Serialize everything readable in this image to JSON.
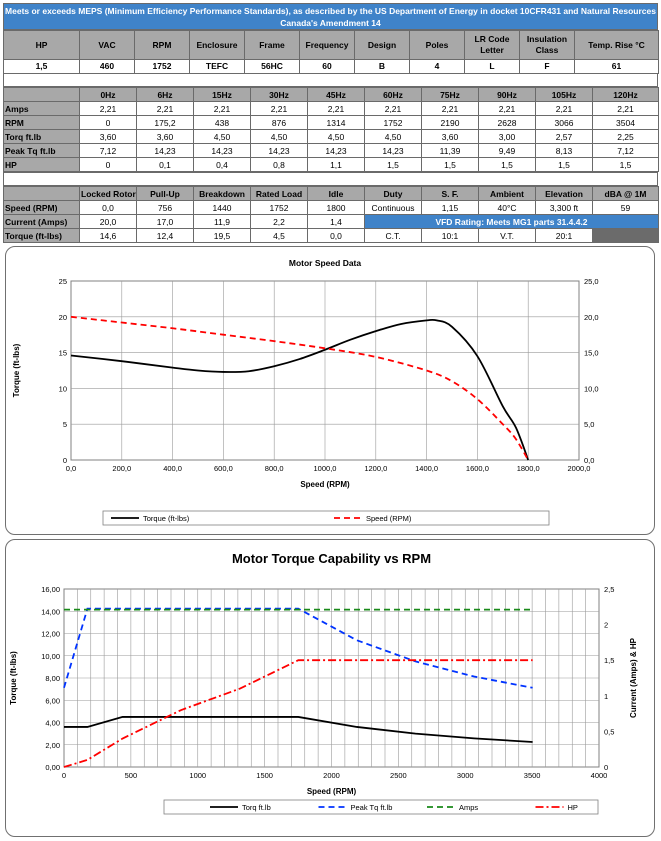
{
  "banner": {
    "text": "Meets or exceeds MEPS (Minimum Efficiency Performance Standards), as described by the US Department of Energy in docket 10CFR431 and Natural Resources Canada's Amendment 14"
  },
  "nameplate": {
    "headers": [
      "HP",
      "VAC",
      "RPM",
      "Enclosure",
      "Frame",
      "Frequency",
      "Design",
      "Poles",
      "LR Code Letter",
      "Insulation Class",
      "Temp. Rise °C"
    ],
    "values": [
      "1,5",
      "460",
      "1752",
      "TEFC",
      "56HC",
      "60",
      "B",
      "4",
      "L",
      "F",
      "61"
    ]
  },
  "frequency_table": {
    "headers": [
      "0Hz",
      "6Hz",
      "15Hz",
      "30Hz",
      "45Hz",
      "60Hz",
      "75Hz",
      "90Hz",
      "105Hz",
      "120Hz"
    ],
    "rows": [
      {
        "label": "Amps",
        "values": [
          "2,21",
          "2,21",
          "2,21",
          "2,21",
          "2,21",
          "2,21",
          "2,21",
          "2,21",
          "2,21",
          "2,21"
        ]
      },
      {
        "label": "RPM",
        "values": [
          "0",
          "175,2",
          "438",
          "876",
          "1314",
          "1752",
          "2190",
          "2628",
          "3066",
          "3504"
        ]
      },
      {
        "label": "Torq ft.lb",
        "values": [
          "3,60",
          "3,60",
          "4,50",
          "4,50",
          "4,50",
          "4,50",
          "3,60",
          "3,00",
          "2,57",
          "2,25"
        ]
      },
      {
        "label": "Peak Tq ft.lb",
        "values": [
          "7,12",
          "14,23",
          "14,23",
          "14,23",
          "14,23",
          "14,23",
          "11,39",
          "9,49",
          "8,13",
          "7,12"
        ]
      },
      {
        "label": "HP",
        "values": [
          "0",
          "0,1",
          "0,4",
          "0,8",
          "1,1",
          "1,5",
          "1,5",
          "1,5",
          "1,5",
          "1,5"
        ]
      }
    ]
  },
  "performance_table": {
    "headers": [
      "Locked Rotor",
      "Pull-Up",
      "Breakdown",
      "Rated Load",
      "Idle",
      "Duty",
      "S. F.",
      "Ambient",
      "Elevation",
      "dBA @ 1M"
    ],
    "rows": [
      {
        "label": "Speed (RPM)",
        "values": [
          "0,0",
          "756",
          "1440",
          "1752",
          "1800"
        ],
        "extra": [
          "Continuous",
          "1,15",
          "40°C",
          "3,300 ft",
          "59"
        ]
      },
      {
        "label": "Current (Amps)",
        "values": [
          "20,0",
          "17,0",
          "11,9",
          "2,2",
          "1,4"
        ],
        "vfd": "VFD Rating: Meets MG1 parts 31.4.4.2"
      },
      {
        "label": "Torque (ft-lbs)",
        "values": [
          "14,6",
          "12,4",
          "19,5",
          "4,5",
          "0,0"
        ],
        "extra": [
          "C.T.",
          "10:1",
          "V.T.",
          "20:1",
          ""
        ]
      }
    ]
  },
  "chart_data": [
    {
      "type": "line",
      "title": "Motor Speed Data",
      "xlabel": "Speed (RPM)",
      "ylabel": "Torque (ft-lbs)",
      "xlim": [
        0,
        2000
      ],
      "ylim": [
        0,
        25
      ],
      "y2lim": [
        0,
        25
      ],
      "xticks": [
        "0,0",
        "200,0",
        "400,0",
        "600,0",
        "800,0",
        "1000,0",
        "1200,0",
        "1400,0",
        "1600,0",
        "1800,0",
        "2000,0"
      ],
      "yticks": [
        "0",
        "5",
        "10",
        "15",
        "20",
        "25"
      ],
      "y2ticks": [
        "0,0",
        "5,0",
        "10,0",
        "15,0",
        "20,0",
        "25,0"
      ],
      "grid": true,
      "legend_position": "bottom",
      "series": [
        {
          "name": "Torque (ft-lbs)",
          "color": "#000000",
          "style": "solid",
          "axis": "left",
          "x": [
            0,
            200,
            400,
            500,
            600,
            700,
            800,
            900,
            1000,
            1100,
            1200,
            1300,
            1400,
            1440,
            1500,
            1600,
            1700,
            1752,
            1800
          ],
          "y": [
            14.6,
            13.8,
            12.9,
            12.5,
            12.3,
            12.4,
            13.1,
            14.1,
            15.4,
            16.8,
            18.0,
            19.0,
            19.5,
            19.5,
            18.6,
            14.5,
            7.5,
            4.5,
            0.0
          ]
        },
        {
          "name": "Speed (RPM)",
          "color": "#ff0000",
          "style": "dashed",
          "axis": "right",
          "x": [
            0,
            200,
            400,
            600,
            800,
            1000,
            1200,
            1400,
            1500,
            1600,
            1700,
            1750,
            1800
          ],
          "y": [
            20.0,
            19.2,
            18.4,
            17.5,
            16.6,
            15.6,
            14.4,
            12.5,
            11.0,
            8.5,
            5.0,
            3.0,
            0.0
          ]
        }
      ]
    },
    {
      "type": "line",
      "title": "Motor Torque Capability vs RPM",
      "xlabel": "Speed (RPM)",
      "ylabel": "Torque (ft-lbs)",
      "y2label": "Current (Amps) & HP",
      "xlim": [
        0,
        4000
      ],
      "ylim": [
        0,
        16
      ],
      "y2lim": [
        0,
        2.5
      ],
      "xticks": [
        "0",
        "500",
        "1000",
        "1500",
        "2000",
        "2500",
        "3000",
        "3500",
        "4000"
      ],
      "yticks": [
        "0,00",
        "2,00",
        "4,00",
        "6,00",
        "8,00",
        "10,00",
        "12,00",
        "14,00",
        "16,00"
      ],
      "y2ticks": [
        "0",
        "0,5",
        "1",
        "1,5",
        "2",
        "2,5"
      ],
      "grid": true,
      "legend_position": "bottom",
      "series": [
        {
          "name": "Torq ft.lb",
          "color": "#000000",
          "style": "solid",
          "axis": "left",
          "x": [
            0,
            175.2,
            438,
            876,
            1314,
            1752,
            2190,
            2628,
            3066,
            3504
          ],
          "y": [
            3.6,
            3.6,
            4.5,
            4.5,
            4.5,
            4.5,
            3.6,
            3.0,
            2.57,
            2.25
          ]
        },
        {
          "name": "Peak Tq ft.lb",
          "color": "#0033ff",
          "style": "dashed",
          "axis": "left",
          "x": [
            0,
            175.2,
            438,
            876,
            1314,
            1752,
            2190,
            2628,
            3066,
            3504
          ],
          "y": [
            7.12,
            14.23,
            14.23,
            14.23,
            14.23,
            14.23,
            11.39,
            9.49,
            8.13,
            7.12
          ]
        },
        {
          "name": "Amps",
          "color": "#1a8a1a",
          "style": "dashed",
          "axis": "right",
          "x": [
            0,
            175.2,
            438,
            876,
            1314,
            1752,
            2190,
            2628,
            3066,
            3504
          ],
          "y": [
            2.21,
            2.21,
            2.21,
            2.21,
            2.21,
            2.21,
            2.21,
            2.21,
            2.21,
            2.21
          ]
        },
        {
          "name": "HP",
          "color": "#ff0000",
          "style": "dashdot",
          "axis": "right",
          "x": [
            0,
            175.2,
            438,
            876,
            1314,
            1752,
            2190,
            2628,
            3066,
            3504
          ],
          "y": [
            0,
            0.1,
            0.4,
            0.8,
            1.1,
            1.5,
            1.5,
            1.5,
            1.5,
            1.5
          ]
        }
      ]
    }
  ]
}
